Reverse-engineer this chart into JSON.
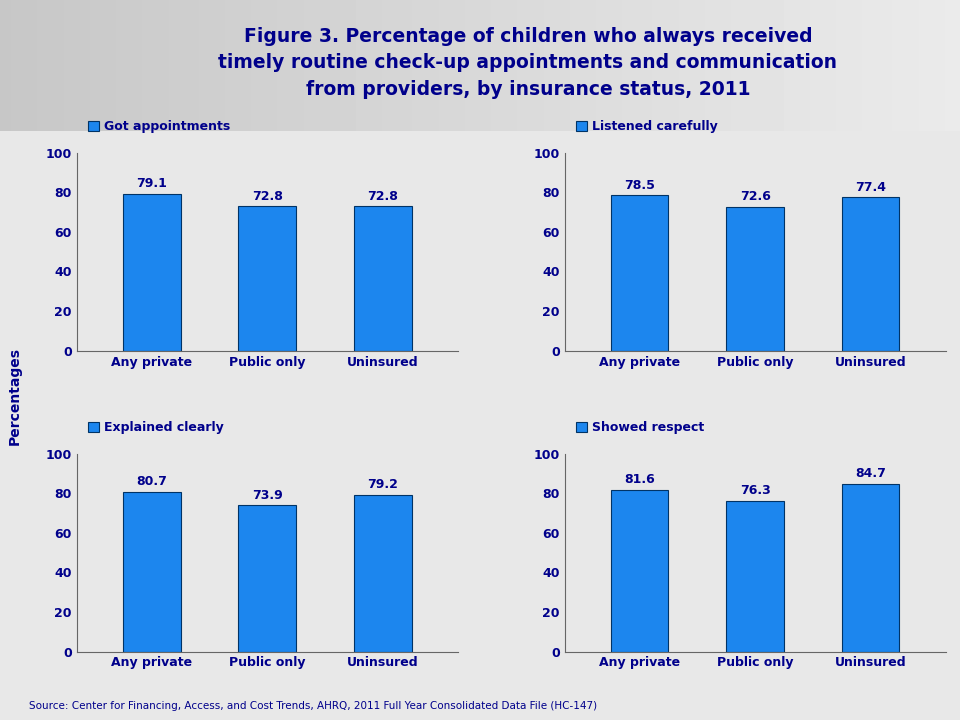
{
  "title_line1": "Figure 3. Percentage of children who always received",
  "title_line2": "timely routine check-up appointments and communication",
  "title_line3": "from providers, by insurance status, 2011",
  "title_color": "#00008B",
  "title_fontsize": 13.5,
  "source_text": "Source: Center for Financing, Access, and Cost Trends, AHRQ, 2011 Full Year Consolidated Data File (HC-147)",
  "ylabel": "Percentages",
  "categories": [
    "Any private",
    "Public only",
    "Uninsured"
  ],
  "subplots": [
    {
      "title": "Got appointments",
      "values": [
        79.1,
        72.8,
        72.8
      ]
    },
    {
      "title": "Listened carefully",
      "values": [
        78.5,
        72.6,
        77.4
      ]
    },
    {
      "title": "Explained clearly",
      "values": [
        80.7,
        73.9,
        79.2
      ]
    },
    {
      "title": "Showed respect",
      "values": [
        81.6,
        76.3,
        84.7
      ]
    }
  ],
  "bar_color": "#1C86EE",
  "bar_edge_color": "#003366",
  "legend_color": "#1C86EE",
  "axis_label_color": "#00008B",
  "tick_label_color": "#00008B",
  "value_label_color": "#00008B",
  "subplot_title_color": "#00008B",
  "header_bg_color": "#D3D3D3",
  "plot_area_bg": "#E8E8E8",
  "plot_bg_color": "#F0F0F0",
  "separator_color": "#A0A0A0",
  "ylim": [
    0,
    100
  ],
  "yticks": [
    0,
    20,
    40,
    60,
    80,
    100
  ],
  "bar_width": 0.5
}
